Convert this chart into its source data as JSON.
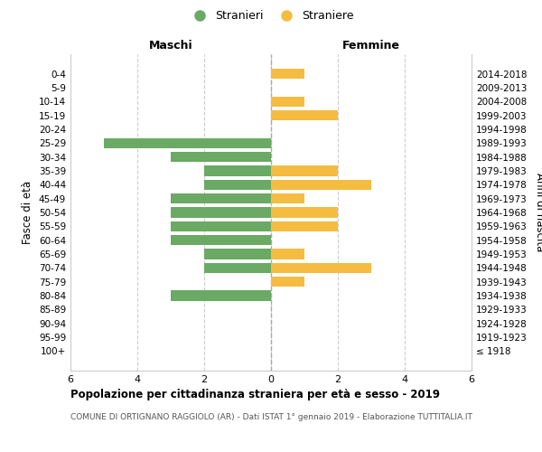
{
  "age_groups": [
    "100+",
    "95-99",
    "90-94",
    "85-89",
    "80-84",
    "75-79",
    "70-74",
    "65-69",
    "60-64",
    "55-59",
    "50-54",
    "45-49",
    "40-44",
    "35-39",
    "30-34",
    "25-29",
    "20-24",
    "15-19",
    "10-14",
    "5-9",
    "0-4"
  ],
  "birth_years": [
    "≤ 1918",
    "1919-1923",
    "1924-1928",
    "1929-1933",
    "1934-1938",
    "1939-1943",
    "1944-1948",
    "1949-1953",
    "1954-1958",
    "1959-1963",
    "1964-1968",
    "1969-1973",
    "1974-1978",
    "1979-1983",
    "1984-1988",
    "1989-1993",
    "1994-1998",
    "1999-2003",
    "2004-2008",
    "2009-2013",
    "2014-2018"
  ],
  "males": [
    0,
    0,
    0,
    0,
    3,
    0,
    2,
    2,
    3,
    3,
    3,
    3,
    2,
    2,
    3,
    5,
    0,
    0,
    0,
    0,
    0
  ],
  "females": [
    0,
    0,
    0,
    0,
    0,
    1,
    3,
    1,
    0,
    2,
    2,
    1,
    3,
    2,
    0,
    0,
    0,
    2,
    1,
    0,
    1
  ],
  "male_color": "#6aaa64",
  "female_color": "#f5bc42",
  "xlim": 6,
  "title": "Popolazione per cittadinanza straniera per età e sesso - 2019",
  "subtitle": "COMUNE DI ORTIGNANO RAGGIOLO (AR) - Dati ISTAT 1° gennaio 2019 - Elaborazione TUTTITALIA.IT",
  "ylabel_left": "Fasce di età",
  "ylabel_right": "Anni di nascita",
  "legend_male": "Stranieri",
  "legend_female": "Straniere",
  "maschi_label": "Maschi",
  "femmine_label": "Femmine",
  "background_color": "#ffffff",
  "grid_color": "#cccccc",
  "spine_color": "#cccccc"
}
